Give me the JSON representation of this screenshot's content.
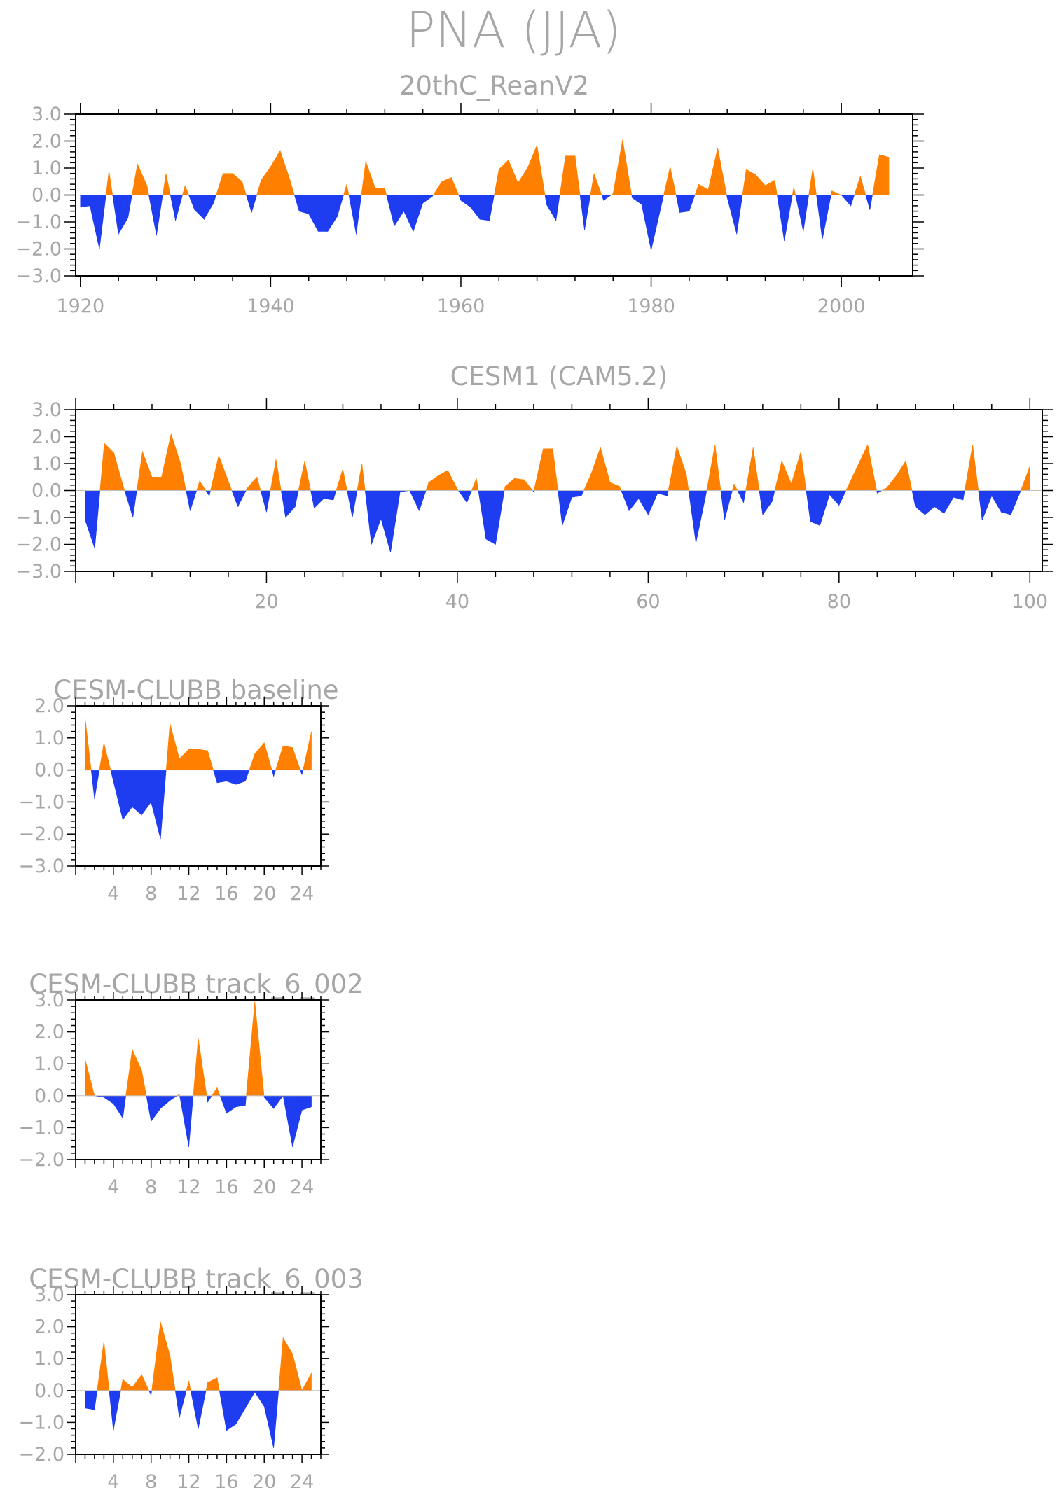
{
  "title": "PNA (JJA)",
  "colors": {
    "positive": "#ff8000",
    "negative": "#1e3cf0"
  },
  "chart_data": [
    {
      "type": "area",
      "title": "20thC_ReanV2",
      "x": [
        1920,
        1921,
        1922,
        1923,
        1924,
        1925,
        1926,
        1927,
        1928,
        1929,
        1930,
        1931,
        1932,
        1933,
        1934,
        1935,
        1936,
        1937,
        1938,
        1939,
        1940,
        1941,
        1942,
        1943,
        1944,
        1945,
        1946,
        1947,
        1948,
        1949,
        1950,
        1951,
        1952,
        1953,
        1954,
        1955,
        1956,
        1957,
        1958,
        1959,
        1960,
        1961,
        1962,
        1963,
        1964,
        1965,
        1966,
        1967,
        1968,
        1969,
        1970,
        1971,
        1972,
        1973,
        1974,
        1975,
        1976,
        1977,
        1978,
        1979,
        1980,
        1981,
        1982,
        1983,
        1984,
        1985,
        1986,
        1987,
        1988,
        1989,
        1990,
        1991,
        1992,
        1993,
        1994,
        1995,
        1996,
        1997,
        1998,
        1999,
        2000,
        2001,
        2002,
        2003,
        2004,
        2005
      ],
      "values": [
        -0.45,
        -0.4,
        -2.0,
        0.9,
        -1.45,
        -0.85,
        1.15,
        0.35,
        -1.5,
        0.8,
        -0.95,
        0.35,
        -0.55,
        -0.9,
        -0.3,
        0.8,
        0.8,
        0.5,
        -0.65,
        0.55,
        1.05,
        1.65,
        0.6,
        -0.6,
        -0.7,
        -1.35,
        -1.35,
        -0.8,
        0.4,
        -1.45,
        1.25,
        0.25,
        0.25,
        -1.15,
        -0.6,
        -1.35,
        -0.3,
        -0.05,
        0.5,
        0.65,
        -0.2,
        -0.45,
        -0.9,
        -0.95,
        0.95,
        1.3,
        0.45,
        1.0,
        1.85,
        -0.35,
        -0.95,
        1.45,
        1.45,
        -1.3,
        0.8,
        -0.2,
        0.05,
        2.05,
        -0.1,
        -0.35,
        -2.05,
        -0.5,
        1.05,
        -0.65,
        -0.6,
        0.4,
        0.2,
        1.75,
        -0.1,
        -1.45,
        0.95,
        0.75,
        0.35,
        0.55,
        -1.7,
        0.3,
        -1.35,
        1.0,
        -1.65,
        0.15,
        0.0,
        -0.4,
        0.7,
        -0.55,
        1.5,
        1.4
      ],
      "ylim": [
        -3,
        3
      ],
      "yticks": [
        -3,
        -2,
        -1,
        0,
        1,
        2,
        3
      ],
      "ytick_labels": [
        "−3.0",
        "−2.0",
        "−1.0",
        "0.0",
        "1.0",
        "2.0",
        "3.0"
      ],
      "xlim": [
        1919.5,
        2007.5
      ],
      "xticks": [
        1920,
        1940,
        1960,
        1980,
        2000
      ],
      "xtick_labels": [
        "1920",
        "1940",
        "1960",
        "1980",
        "2000"
      ],
      "grid": false
    },
    {
      "type": "area",
      "title": "CESM1 (CAM5.2)",
      "x": [
        1,
        2,
        3,
        4,
        5,
        6,
        7,
        8,
        9,
        10,
        11,
        12,
        13,
        14,
        15,
        16,
        17,
        18,
        19,
        20,
        21,
        22,
        23,
        24,
        25,
        26,
        27,
        28,
        29,
        30,
        31,
        32,
        33,
        34,
        35,
        36,
        37,
        38,
        39,
        40,
        41,
        42,
        43,
        44,
        45,
        46,
        47,
        48,
        49,
        50,
        51,
        52,
        53,
        54,
        55,
        56,
        57,
        58,
        59,
        60,
        61,
        62,
        63,
        64,
        65,
        66,
        67,
        68,
        69,
        70,
        71,
        72,
        73,
        74,
        75,
        76,
        77,
        78,
        79,
        80,
        81,
        82,
        83,
        84,
        85,
        86,
        87,
        88,
        89,
        90,
        91,
        92,
        93,
        94,
        95,
        96,
        97,
        98,
        99,
        100
      ],
      "values": [
        -1.1,
        -2.15,
        1.75,
        1.4,
        0.15,
        -1.0,
        1.45,
        0.5,
        0.5,
        2.1,
        1.0,
        -0.75,
        0.35,
        -0.2,
        1.3,
        0.35,
        -0.6,
        0.1,
        0.5,
        -0.8,
        1.15,
        -1.0,
        -0.6,
        1.1,
        -0.65,
        -0.3,
        -0.35,
        0.8,
        -1.0,
        1.0,
        -2.0,
        -1.05,
        -2.3,
        -0.05,
        0.0,
        -0.75,
        0.3,
        0.55,
        0.75,
        0.05,
        -0.45,
        0.45,
        -1.8,
        -2.0,
        0.15,
        0.45,
        0.4,
        -0.05,
        1.55,
        1.55,
        -1.3,
        -0.25,
        -0.2,
        0.6,
        1.6,
        0.3,
        0.15,
        -0.75,
        -0.3,
        -0.9,
        -0.1,
        -0.2,
        1.65,
        0.6,
        -1.95,
        -0.25,
        1.7,
        -1.1,
        0.25,
        -0.45,
        1.6,
        -0.9,
        -0.4,
        1.1,
        0.25,
        1.45,
        -1.15,
        -1.3,
        -0.15,
        -0.55,
        0.2,
        0.95,
        1.7,
        -0.1,
        0.1,
        0.55,
        1.1,
        -0.6,
        -0.9,
        -0.6,
        -0.85,
        -0.25,
        -0.35,
        1.7,
        -1.1,
        -0.2,
        -0.8,
        -0.9,
        -0.05,
        0.9
      ],
      "ylim": [
        -3,
        3
      ],
      "yticks": [
        -3,
        -2,
        -1,
        0,
        1,
        2,
        3
      ],
      "ytick_labels": [
        "−3.0",
        "−2.0",
        "−1.0",
        "0.0",
        "1.0",
        "2.0",
        "3.0"
      ],
      "xlim": [
        0,
        101.3
      ],
      "xticks": [
        20,
        40,
        60,
        80,
        100
      ],
      "xtick_labels": [
        "20",
        "40",
        "60",
        "80",
        "100"
      ],
      "grid": false
    },
    {
      "type": "area",
      "title": "CESM-CLUBB baseline",
      "x": [
        1,
        2,
        3,
        4,
        5,
        6,
        7,
        8,
        9,
        10,
        11,
        12,
        13,
        14,
        15,
        16,
        17,
        18,
        19,
        20,
        21,
        22,
        23,
        24,
        25
      ],
      "values": [
        1.65,
        -0.9,
        0.85,
        -0.35,
        -1.55,
        -1.15,
        -1.4,
        -1.0,
        -2.15,
        1.45,
        0.35,
        0.65,
        0.65,
        0.6,
        -0.4,
        -0.35,
        -0.45,
        -0.35,
        0.5,
        0.85,
        -0.2,
        0.75,
        0.7,
        -0.15,
        1.2
      ],
      "ylim": [
        -3,
        2
      ],
      "yticks": [
        -3,
        -2,
        -1,
        0,
        1,
        2
      ],
      "ytick_labels": [
        "−3.0",
        "−2.0",
        "−1.0",
        "0.0",
        "1.0",
        "2.0"
      ],
      "xlim": [
        0,
        26
      ],
      "xticks": [
        4,
        8,
        12,
        16,
        20,
        24
      ],
      "xtick_labels": [
        "4",
        "8",
        "12",
        "16",
        "20",
        "24"
      ],
      "grid": false
    },
    {
      "type": "area",
      "title": "CESM-CLUBB track_6_002",
      "x": [
        1,
        2,
        3,
        4,
        5,
        6,
        7,
        8,
        9,
        10,
        11,
        12,
        13,
        14,
        15,
        16,
        17,
        18,
        19,
        20,
        21,
        22,
        23,
        24,
        25
      ],
      "values": [
        1.15,
        0.0,
        -0.05,
        -0.25,
        -0.7,
        1.45,
        0.8,
        -0.8,
        -0.4,
        -0.15,
        0.05,
        -1.6,
        1.8,
        -0.2,
        0.25,
        -0.55,
        -0.35,
        -0.3,
        2.95,
        -0.05,
        -0.4,
        0.0,
        -1.6,
        -0.45,
        -0.35
      ],
      "ylim": [
        -2,
        3
      ],
      "yticks": [
        -2,
        -1,
        0,
        1,
        2,
        3
      ],
      "ytick_labels": [
        "−2.0",
        "−1.0",
        "0.0",
        "1.0",
        "2.0",
        "3.0"
      ],
      "xlim": [
        0,
        26
      ],
      "xticks": [
        4,
        8,
        12,
        16,
        20,
        24
      ],
      "xtick_labels": [
        "4",
        "8",
        "12",
        "16",
        "20",
        "24"
      ],
      "grid": false
    },
    {
      "type": "area",
      "title": "CESM-CLUBB track_6_003",
      "x": [
        1,
        2,
        3,
        4,
        5,
        6,
        7,
        8,
        9,
        10,
        11,
        12,
        13,
        14,
        15,
        16,
        17,
        18,
        19,
        20,
        21,
        22,
        23,
        24,
        25
      ],
      "values": [
        -0.55,
        -0.6,
        1.55,
        -1.25,
        0.35,
        0.1,
        0.5,
        -0.15,
        2.15,
        1.1,
        -0.85,
        0.3,
        -1.2,
        0.25,
        0.4,
        -1.25,
        -1.05,
        -0.55,
        -0.05,
        -0.5,
        -1.8,
        1.65,
        1.15,
        0.0,
        0.55
      ],
      "ylim": [
        -2,
        3
      ],
      "yticks": [
        -2,
        -1,
        0,
        1,
        2,
        3
      ],
      "ytick_labels": [
        "−2.0",
        "−1.0",
        "0.0",
        "1.0",
        "2.0",
        "3.0"
      ],
      "xlim": [
        0,
        26
      ],
      "xticks": [
        4,
        8,
        12,
        16,
        20,
        24
      ],
      "xtick_labels": [
        "4",
        "8",
        "12",
        "16",
        "20",
        "24"
      ],
      "grid": false
    }
  ]
}
